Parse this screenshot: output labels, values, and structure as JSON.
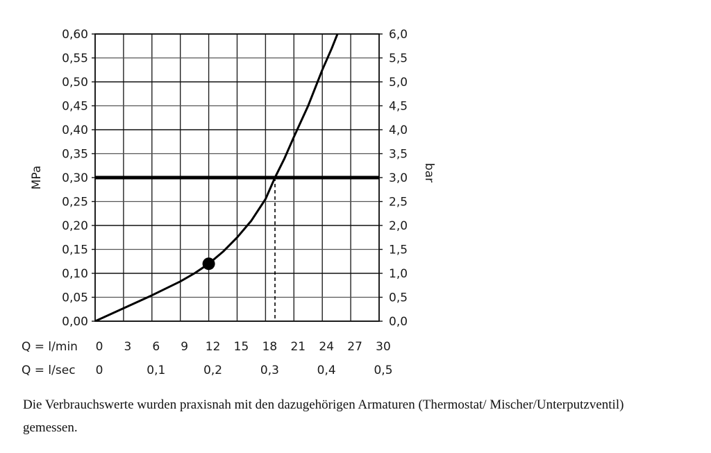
{
  "chart_data": {
    "type": "line",
    "x_rows": [
      {
        "label": "Q = l/min",
        "ticks": [
          "0",
          "3",
          "6",
          "9",
          "12",
          "15",
          "18",
          "21",
          "24",
          "27",
          "30"
        ]
      },
      {
        "label": "Q = l/sec",
        "ticks": [
          "0",
          "0,1",
          "0,2",
          "0,3",
          "0,4",
          "0,5"
        ]
      }
    ],
    "xlim": [
      0,
      30
    ],
    "ylabel": "MPa",
    "ylim": [
      0,
      0.6
    ],
    "y_ticks": [
      "0,00",
      "0,05",
      "0,10",
      "0,15",
      "0,20",
      "0,25",
      "0,30",
      "0,35",
      "0,40",
      "0,45",
      "0,50",
      "0,55",
      "0,60"
    ],
    "y2label": "bar",
    "y2_ticks": [
      "0,0",
      "0,5",
      "1,0",
      "1,5",
      "2,0",
      "2,5",
      "3,0",
      "3,5",
      "4,0",
      "4,5",
      "5,0",
      "5,5",
      "6,0"
    ],
    "grid": true,
    "series": [
      {
        "x": [
          0,
          3,
          6,
          9,
          10.5,
          12,
          13.5,
          15,
          16.5,
          18,
          19,
          20,
          21,
          22.5,
          24,
          25,
          26
        ],
        "y": [
          0,
          0.027,
          0.054,
          0.083,
          0.1,
          0.12,
          0.145,
          0.175,
          0.21,
          0.255,
          0.3,
          0.34,
          0.385,
          0.45,
          0.525,
          0.57,
          0.62
        ]
      }
    ],
    "highlight_point": {
      "x": 12,
      "y": 0.12
    },
    "reference_line": {
      "y": 0.3
    },
    "drop_line": {
      "x": 19,
      "y": 0.3
    }
  },
  "caption": "Die Verbrauchswerte wurden praxisnah mit den dazugehörigen Armaturen (Thermostat/ Mischer/Unterputzventil) gemessen."
}
